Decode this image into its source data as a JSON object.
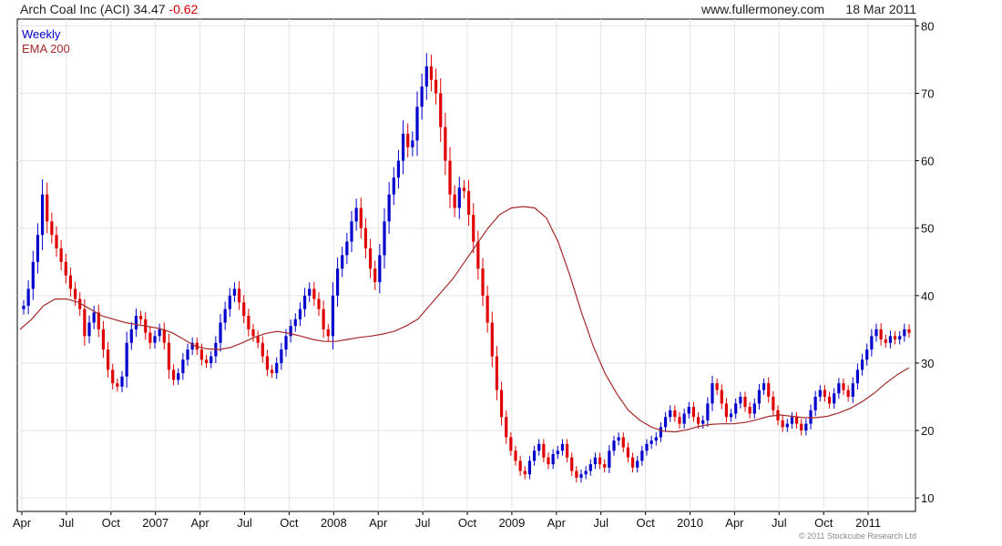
{
  "header": {
    "ticker_label": "Arch Coal Inc (ACI)",
    "price": "34.47",
    "change": "-0.62",
    "site": "www.fullermoney.com",
    "date": "18 Mar 2011"
  },
  "legend": {
    "weekly": "Weekly",
    "ema": "EMA 200"
  },
  "copyright": "© 2011 Stockcube Research Ltd",
  "colors": {
    "up": "#0000cc",
    "down": "#e00000",
    "ema": "#a52a2a",
    "grid": "#e4e4e4",
    "axis": "#000000"
  },
  "chart_data": {
    "type": "candlestick",
    "title": "Arch Coal Inc (ACI) 34.47 -0.62",
    "ylim": [
      8,
      81
    ],
    "y_ticks": [
      10,
      20,
      30,
      40,
      50,
      60,
      70,
      80
    ],
    "x_ticks": [
      "Apr",
      "Jul",
      "Oct",
      "2007",
      "Apr",
      "Jul",
      "Oct",
      "2008",
      "Apr",
      "Jul",
      "Oct",
      "2009",
      "Apr",
      "Jul",
      "Oct",
      "2010",
      "Apr",
      "Jul",
      "Oct",
      "2011"
    ],
    "weekly_close": [
      [
        38.5,
        41,
        45,
        49,
        55,
        51,
        49,
        47,
        45,
        43,
        41,
        39.5,
        38,
        34,
        36,
        37.5,
        35,
        32,
        29,
        27,
        26.5,
        28,
        33,
        35,
        37,
        36.5,
        34.5,
        33,
        34,
        35,
        33,
        29,
        27.5,
        28.5,
        30.5,
        32,
        33,
        32,
        30.5,
        30,
        31,
        33,
        36,
        38,
        40,
        41,
        39,
        37,
        35,
        34,
        33,
        31,
        29,
        28.5,
        30,
        32,
        34,
        35.5,
        36.5,
        38,
        40,
        41,
        39.5,
        38,
        35,
        34,
        40,
        44,
        46,
        48,
        51,
        53,
        50,
        47,
        44,
        42,
        46,
        51,
        55,
        57.5,
        60,
        64,
        62,
        63,
        68,
        71,
        74,
        72,
        70,
        65,
        60,
        55,
        53,
        56,
        55.5,
        52,
        48,
        44,
        40,
        36,
        31,
        26,
        22,
        19,
        17,
        15.5,
        14,
        13.5,
        15.5,
        17,
        18,
        16,
        15,
        16.5,
        17,
        18,
        16,
        14,
        13,
        13.5,
        14,
        15,
        16,
        15,
        14.5,
        17,
        18.5,
        19,
        17.5,
        16,
        14.5,
        15.5,
        17,
        18,
        18.5,
        19,
        20.5,
        22,
        23,
        22,
        21,
        22.5,
        23.5,
        22,
        21,
        21.5,
        24,
        27,
        26,
        24,
        22,
        22.5,
        24,
        25,
        23.5,
        22.5,
        24,
        26,
        27,
        25,
        23,
        21.5,
        20.5,
        21,
        22,
        21,
        20,
        21,
        23,
        25,
        26,
        25,
        24,
        25.5,
        27,
        26,
        25,
        27,
        29,
        30.5,
        32,
        34,
        35,
        33.5,
        33,
        34,
        33.5,
        34,
        35,
        34.5
      ]
    ],
    "series": [
      {
        "name": "Weekly",
        "kind": "ohlc-weekly"
      },
      {
        "name": "EMA 200",
        "values": [
          35,
          36.5,
          38.5,
          39.5,
          39.5,
          39,
          38,
          37,
          36.5,
          36,
          35.7,
          35.4,
          35.1,
          34.5,
          33.5,
          32.5,
          32.1,
          32,
          32.3,
          33,
          33.8,
          34.4,
          34.7,
          34.4,
          34,
          33.5,
          33.2,
          33.2,
          33.5,
          33.8,
          34,
          34.3,
          34.7,
          35.5,
          36.5,
          38.5,
          40.5,
          42.5,
          45,
          47.5,
          50,
          52,
          53,
          53.2,
          53,
          51.5,
          48,
          43,
          37.5,
          32.5,
          28.5,
          25.5,
          23,
          21.5,
          20.5,
          19.9,
          19.8,
          20.1,
          20.6,
          20.9,
          21,
          21,
          21.2,
          21.6,
          22.1,
          22.3,
          22.1,
          21.9,
          21.9,
          22.1,
          22.6,
          23.3,
          24.3,
          25.5,
          27,
          28.3,
          29.3
        ]
      }
    ]
  }
}
